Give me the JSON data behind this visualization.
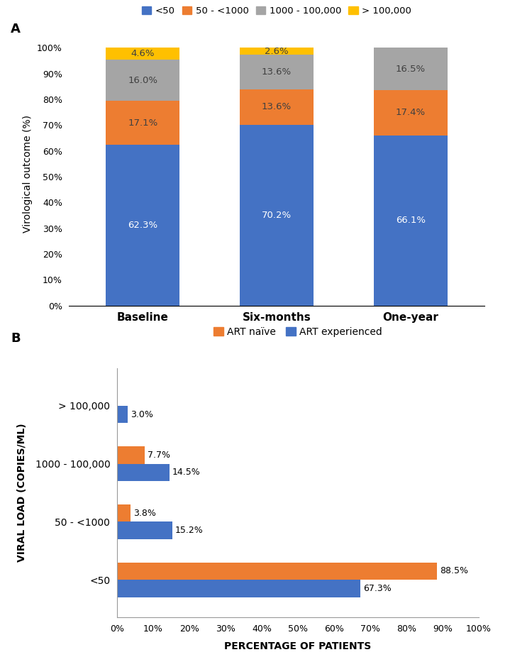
{
  "panel_A": {
    "categories": [
      "Baseline",
      "Six-months",
      "One-year"
    ],
    "series": [
      {
        "label": "<50",
        "color": "#4472C4",
        "values": [
          62.3,
          70.2,
          66.1
        ]
      },
      {
        "label": "50 - <1000",
        "color": "#ED7D31",
        "values": [
          17.1,
          13.6,
          17.4
        ]
      },
      {
        "label": "1000 - 100,000",
        "color": "#A5A5A5",
        "values": [
          16.0,
          13.6,
          16.5
        ]
      },
      {
        "label": "> 100,000",
        "color": "#FFC000",
        "values": [
          4.6,
          2.6,
          0.0
        ]
      }
    ],
    "ylabel": "Virological outcome (%)",
    "yticks": [
      0,
      10,
      20,
      30,
      40,
      50,
      60,
      70,
      80,
      90,
      100
    ],
    "ytick_labels": [
      "0%",
      "10%",
      "20%",
      "30%",
      "40%",
      "50%",
      "60%",
      "70%",
      "80%",
      "90%",
      "100%"
    ]
  },
  "panel_B": {
    "categories": [
      "<50",
      "50 - <1000",
      "1000 - 100,000",
      "> 100,000"
    ],
    "series": [
      {
        "label": "ART naïve",
        "color": "#ED7D31",
        "values": [
          88.5,
          3.8,
          7.7,
          0.0
        ]
      },
      {
        "label": "ART experienced",
        "color": "#4472C4",
        "values": [
          67.3,
          15.2,
          14.5,
          3.0
        ]
      }
    ],
    "xlabel": "PERCENTAGE OF PATIENTS",
    "ylabel": "VIRAL LOAD (COPIES/ML)",
    "xticks": [
      0,
      10,
      20,
      30,
      40,
      50,
      60,
      70,
      80,
      90,
      100
    ],
    "xtick_labels": [
      "0%",
      "10%",
      "20%",
      "30%",
      "40%",
      "50%",
      "60%",
      "70%",
      "80%",
      "90%",
      "100%"
    ]
  }
}
